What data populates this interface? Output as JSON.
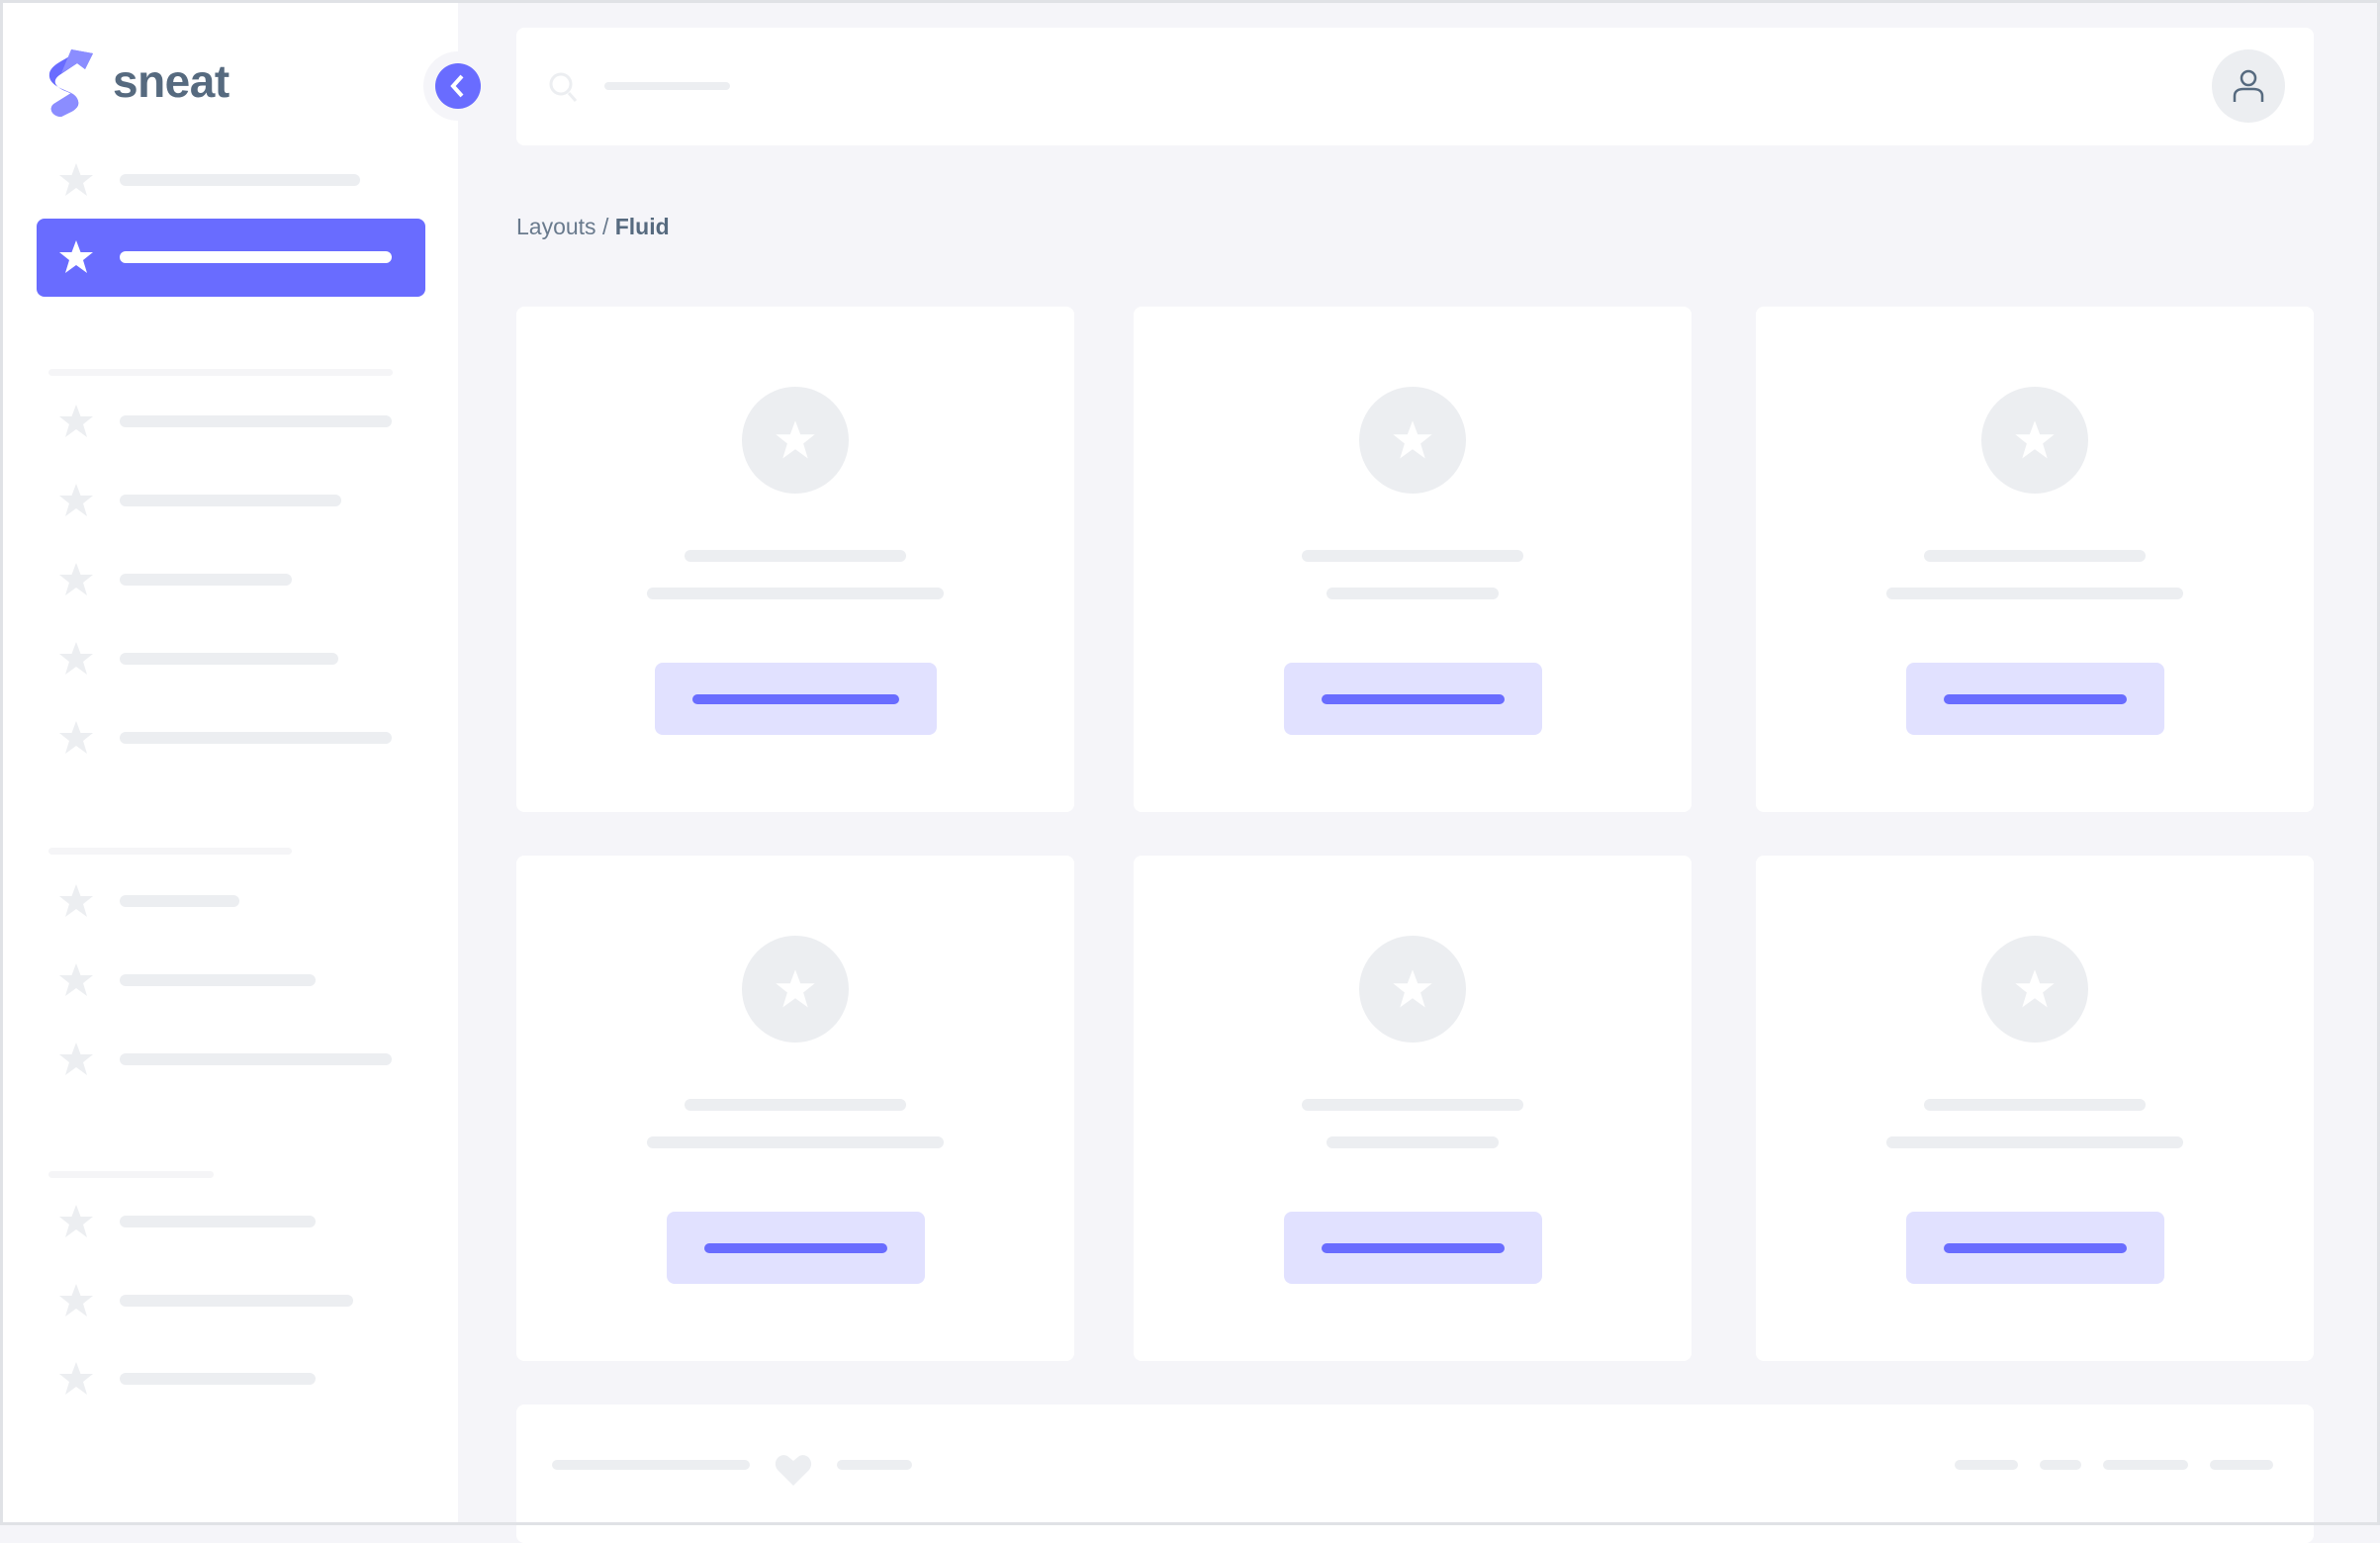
{
  "app": {
    "logo_text": "sneat",
    "brand_color": "#696cff",
    "logo_icon": "sneat-logo-icon"
  },
  "sidebar": {
    "collapse_icon": "chevron-left-icon",
    "item_icon": "star-icon",
    "active_index": 1
  },
  "navbar": {
    "search_icon": "search-icon",
    "user_icon": "user-icon"
  },
  "breadcrumb": {
    "parent": "Layouts",
    "separator": " / ",
    "current": "Fluid"
  },
  "footer": {
    "heart_icon": "heart-icon"
  },
  "colors": {
    "accent": "#696cff",
    "accent_light": "#e1e1ff",
    "skeleton": "#eceef1",
    "background": "#f5f5f9",
    "text": "#566a7f"
  }
}
